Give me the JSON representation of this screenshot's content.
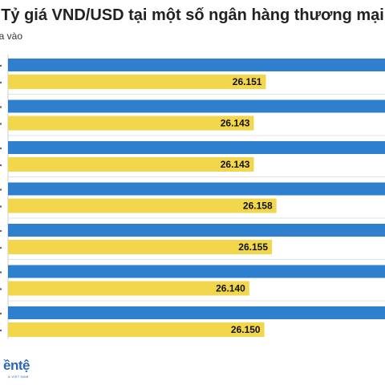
{
  "chart_data": {
    "type": "bar",
    "orientation": "horizontal",
    "title": "Tỷ giá VND/USD tại một số ngân hàng thương mại",
    "legend_text": "ua vào",
    "series": [
      {
        "name": "",
        "color": "#2f7fcf",
        "values": [
          26.45,
          26.45,
          26.45,
          26.45,
          26.45,
          26.45,
          26.45
        ]
      },
      {
        "name": "",
        "color": "#f2d64b",
        "values": [
          26.151,
          26.143,
          26.143,
          26.158,
          26.155,
          26.14,
          26.15
        ],
        "labels": [
          "26.151",
          "26.143",
          "26.143",
          "26.158",
          "26.155",
          "26.140",
          "26.150"
        ]
      }
    ],
    "xlim": [
      25.98,
      26.23
    ],
    "grid": true
  },
  "branding": {
    "logo_text": "ềntệ",
    "logo_subtext": "& VIET NAM"
  }
}
